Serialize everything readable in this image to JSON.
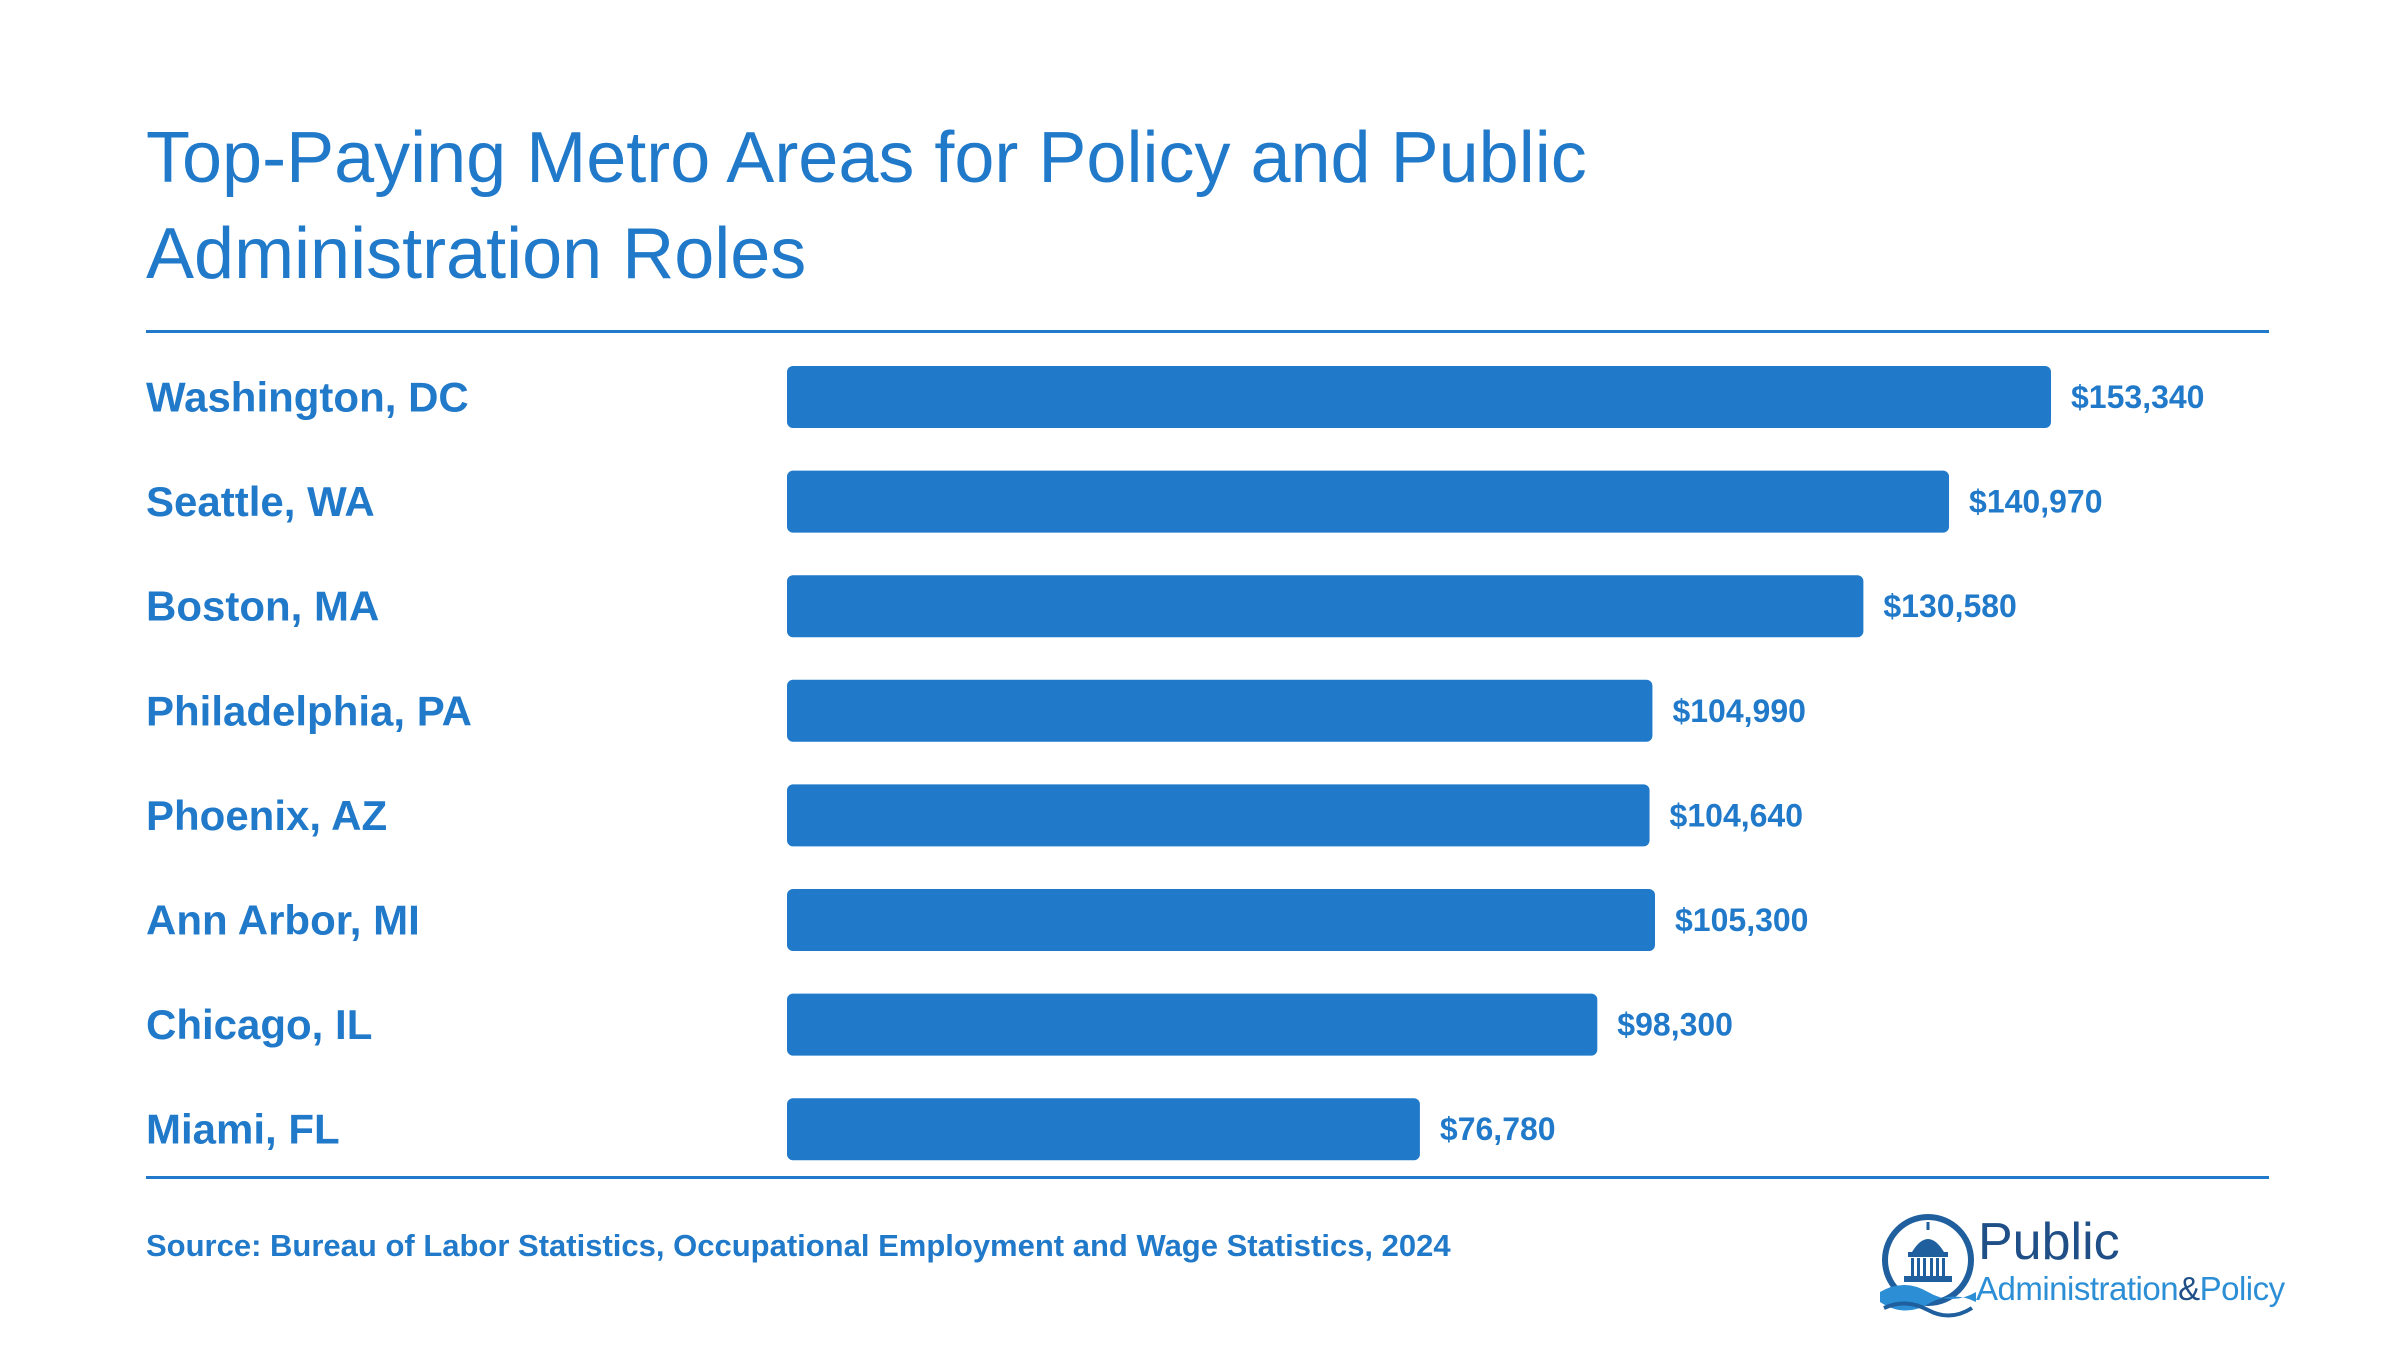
{
  "colors": {
    "accent": "#2179c9",
    "logo_dark": "#1f4f86",
    "logo_light": "#2c8fd6"
  },
  "chart_data": {
    "type": "bar",
    "orientation": "horizontal",
    "title": "Top-Paying Metro Areas for Policy and Public Administration Roles",
    "categories": [
      "Washington, DC",
      "Seattle, WA",
      "Boston, MA",
      "Philadelphia, PA",
      "Phoenix, AZ",
      "Ann Arbor, MI",
      "Chicago, IL",
      "Miami, FL"
    ],
    "values": [
      153340,
      140970,
      130580,
      104990,
      104640,
      105300,
      98300,
      76780
    ],
    "value_labels": [
      "$153,340",
      "$140,970",
      "$130,580",
      "$104,990",
      "$104,640",
      "$105,300",
      "$98,300",
      "$76,780"
    ],
    "xlim": [
      0,
      153340
    ],
    "grid": false,
    "legend": "none"
  },
  "footer": {
    "source": "Source: Bureau of Labor Statistics, Occupational Employment and Wage Statistics, 2024"
  },
  "logo": {
    "word_public": "Public",
    "word_admin": "Administration",
    "word_amp": "&",
    "word_policy": "Policy",
    "icon": "capitol-dome-icon"
  }
}
